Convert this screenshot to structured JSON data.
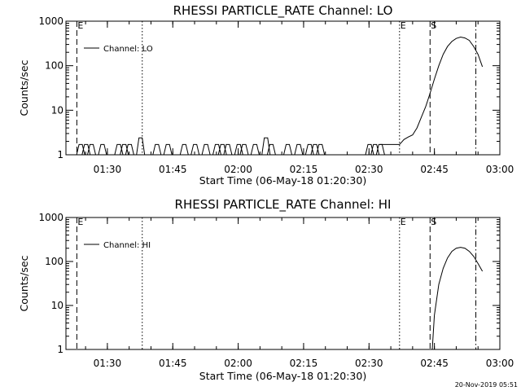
{
  "timestamp": "20-Nov-2019 05:51",
  "chart_data": [
    {
      "type": "line",
      "title": "RHESSI PARTICLE_RATE Channel: LO",
      "xlabel": "Start Time (06-May-18 01:20:30)",
      "ylabel": "Counts/sec",
      "yscale": "log",
      "ylim": [
        1,
        1000
      ],
      "xlim": [
        "01:20:30",
        "03:00:00"
      ],
      "x_tick_labels": [
        "01:30",
        "01:45",
        "02:00",
        "02:15",
        "02:30",
        "02:45",
        "03:00"
      ],
      "y_tick_labels": [
        "1",
        "10",
        "100",
        "1000"
      ],
      "legend_position": "top-left",
      "series": [
        {
          "name": "Channel: LO",
          "x": [
            "02:32:30",
            "02:34:00",
            "02:35:00",
            "02:36:00",
            "02:37:00",
            "02:38:00",
            "02:39:00",
            "02:40:00",
            "02:41:00",
            "02:42:00",
            "02:43:00",
            "02:44:00",
            "02:45:00",
            "02:46:00",
            "02:47:00",
            "02:48:00",
            "02:49:00",
            "02:50:00",
            "02:51:00",
            "02:52:00",
            "02:53:00",
            "02:54:00",
            "02:55:00",
            "02:56:00"
          ],
          "values": [
            1.7,
            1.7,
            1.7,
            1.7,
            1.7,
            2.2,
            2.5,
            2.8,
            4,
            7,
            12,
            24,
            50,
            100,
            180,
            270,
            350,
            410,
            440,
            420,
            370,
            270,
            180,
            95
          ]
        }
      ],
      "markers": [
        {
          "label": "E",
          "x": "01:23:00",
          "style": "dashed",
          "label_shown": true
        },
        {
          "label": "",
          "x": "01:38:00",
          "style": "dotted",
          "label_shown": false
        },
        {
          "label": "E",
          "x": "02:37:00",
          "style": "dotted",
          "label_shown": true
        },
        {
          "label": "S",
          "x": "02:44:00",
          "style": "dashed",
          "label_shown": true
        },
        {
          "label": "",
          "x": "02:54:30",
          "style": "dashdot",
          "label_shown": false
        }
      ]
    },
    {
      "type": "line",
      "title": "RHESSI PARTICLE_RATE Channel: HI",
      "xlabel": "Start Time (06-May-18 01:20:30)",
      "ylabel": "Counts/sec",
      "yscale": "log",
      "ylim": [
        1,
        1000
      ],
      "xlim": [
        "01:20:30",
        "03:00:00"
      ],
      "x_tick_labels": [
        "01:30",
        "01:45",
        "02:00",
        "02:15",
        "02:30",
        "02:45",
        "03:00"
      ],
      "y_tick_labels": [
        "1",
        "10",
        "100",
        "1000"
      ],
      "legend_position": "top-left",
      "series": [
        {
          "name": "Channel: HI",
          "x": [
            "02:44:30",
            "02:45:00",
            "02:46:00",
            "02:47:00",
            "02:48:00",
            "02:49:00",
            "02:50:00",
            "02:51:00",
            "02:52:00",
            "02:53:00",
            "02:54:00",
            "02:55:00",
            "02:56:00"
          ],
          "values": [
            1,
            6,
            30,
            70,
            120,
            170,
            200,
            210,
            200,
            170,
            130,
            90,
            60
          ]
        }
      ],
      "markers": [
        {
          "label": "E",
          "x": "01:23:00",
          "style": "dashed",
          "label_shown": true
        },
        {
          "label": "",
          "x": "01:38:00",
          "style": "dotted",
          "label_shown": false
        },
        {
          "label": "E",
          "x": "02:37:00",
          "style": "dotted",
          "label_shown": true
        },
        {
          "label": "S",
          "x": "02:44:00",
          "style": "dashed",
          "label_shown": true
        },
        {
          "label": "",
          "x": "02:54:30",
          "style": "dashdot",
          "label_shown": false
        }
      ]
    }
  ]
}
